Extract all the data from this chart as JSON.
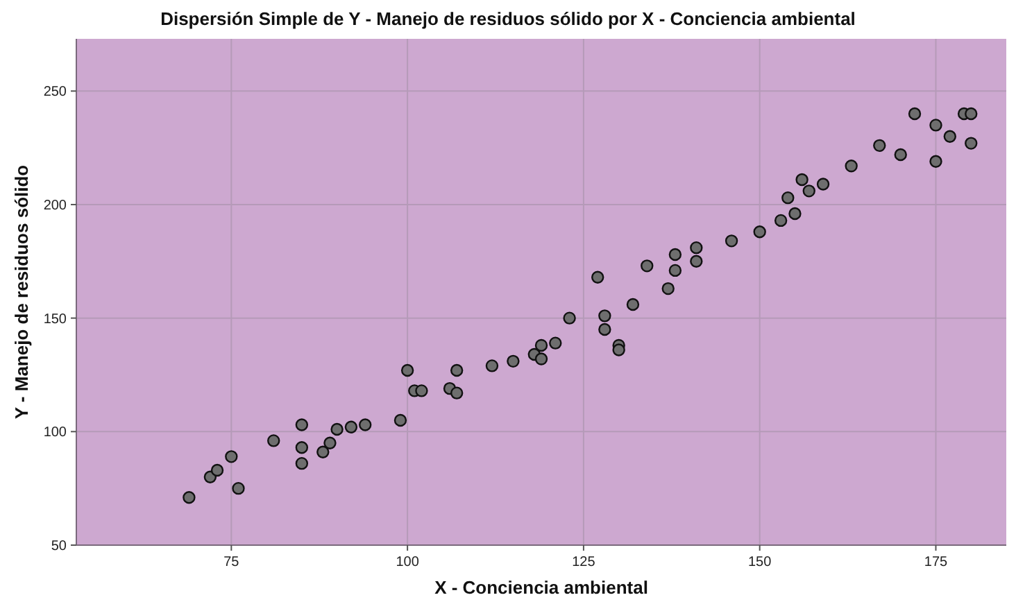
{
  "chart_data": {
    "type": "scatter",
    "title": "Dispersión Simple de Y - Manejo de residuos sólido por X - Conciencia ambiental",
    "xlabel": "X - Conciencia ambiental",
    "ylabel": "Y - Manejo de residuos sólido",
    "series": [
      {
        "color": "#6e6e6e",
        "x": [
          69,
          72,
          73,
          75,
          76,
          81,
          85,
          85,
          85,
          88,
          89,
          90,
          92,
          94,
          99,
          100,
          101,
          102,
          106,
          107,
          107,
          112,
          115,
          118,
          119,
          119,
          121,
          123,
          127,
          128,
          128,
          130,
          130,
          132,
          134,
          137,
          138,
          138,
          141,
          141,
          146,
          150,
          153,
          154,
          155,
          156,
          157,
          159,
          163,
          167,
          170,
          172,
          175,
          175,
          177,
          179,
          180,
          180
        ],
        "values": [
          71,
          80,
          83,
          89,
          75,
          96,
          103,
          93,
          86,
          91,
          95,
          101,
          102,
          103,
          105,
          127,
          118,
          118,
          119,
          127,
          117,
          129,
          131,
          134,
          138,
          132,
          139,
          150,
          168,
          151,
          145,
          138,
          136,
          156,
          173,
          163,
          171,
          178,
          175,
          181,
          184,
          188,
          193,
          203,
          196,
          211,
          206,
          209,
          217,
          226,
          222,
          240,
          235,
          219,
          230,
          240,
          240,
          227
        ]
      }
    ],
    "xlim": [
      53,
      185
    ],
    "ylim": [
      50,
      273
    ],
    "xticks": [
      75,
      100,
      125,
      150,
      175
    ],
    "yticks": [
      50,
      100,
      150,
      200,
      250
    ],
    "grid": true,
    "marker": "circle"
  }
}
